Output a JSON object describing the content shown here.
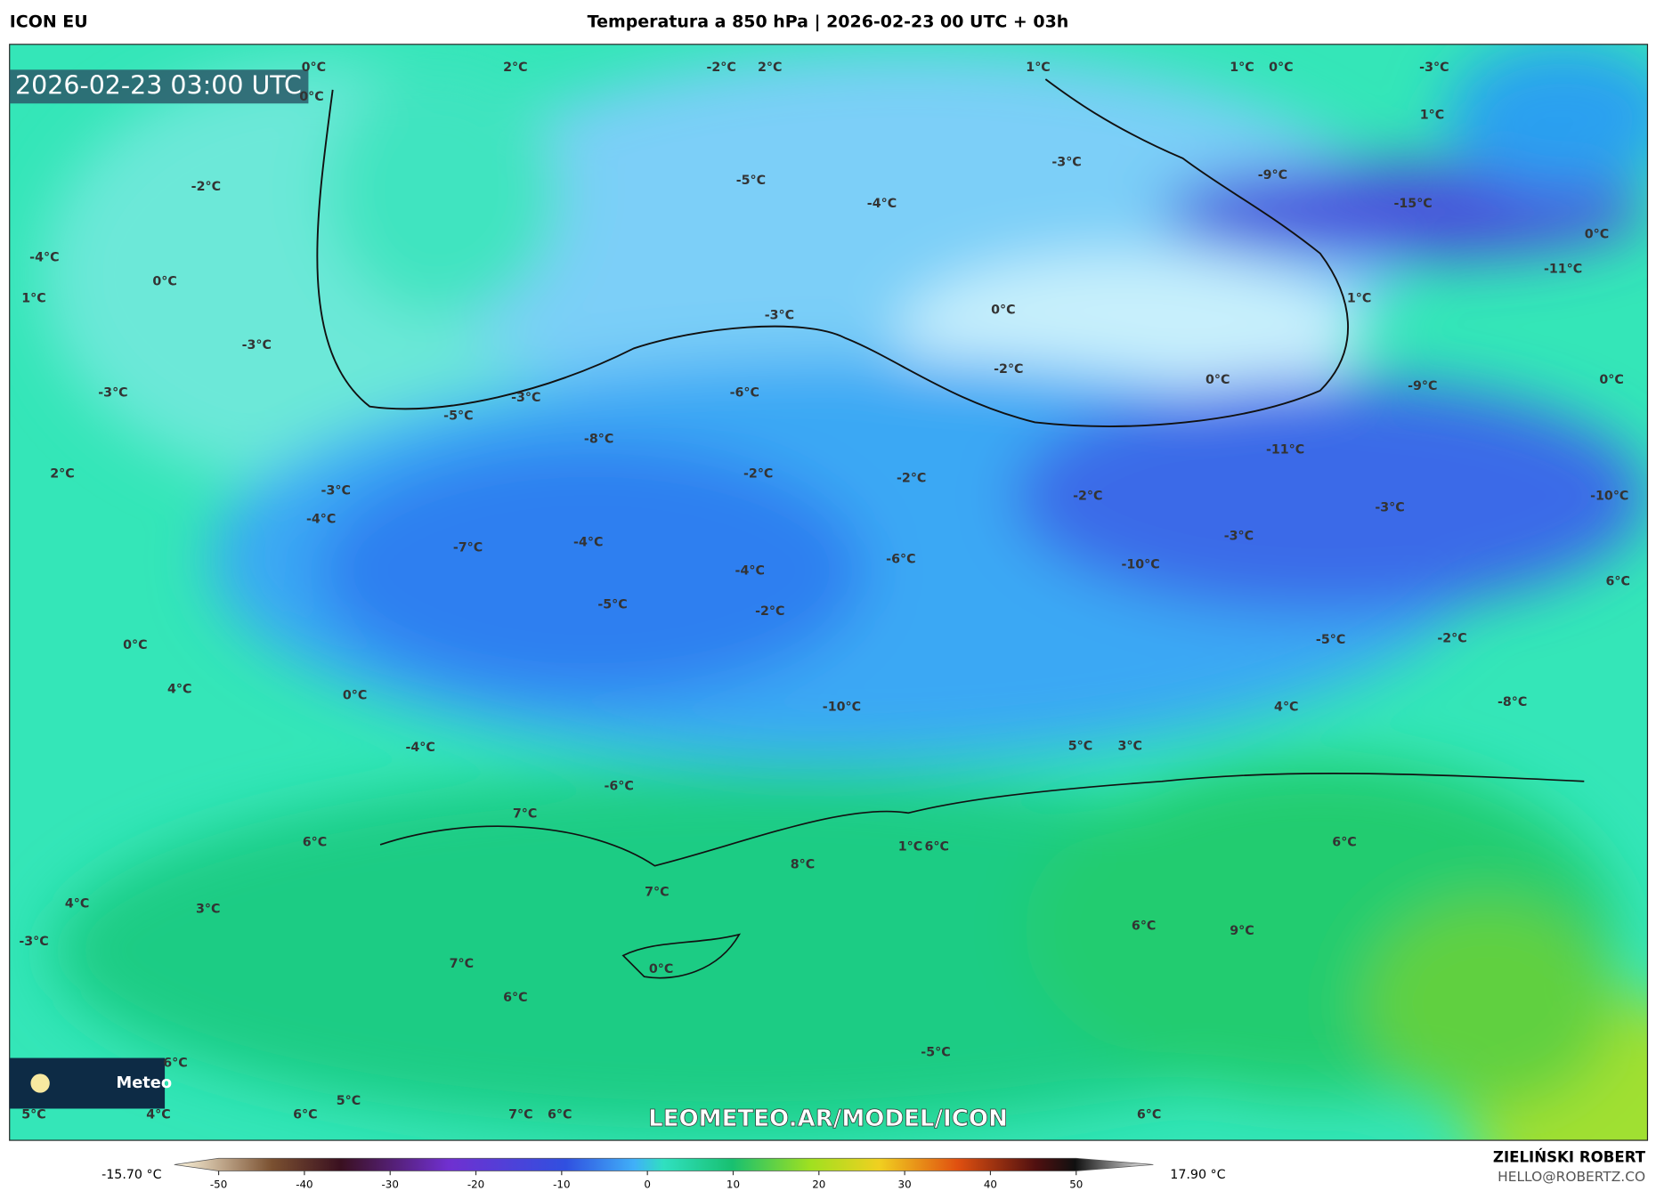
{
  "header": {
    "model": "ICON EU",
    "title": "Temperatura a 850 hPa | 2026-02-23 00 UTC + 03h"
  },
  "timestamp": "2026-02-23 03:00 UTC",
  "map": {
    "labels": [
      "0°C",
      "0°C",
      "2°C",
      "-2°C",
      "2°C",
      "1°C",
      "1°C",
      "0°C",
      "-3°C",
      "1°C",
      "-2°C",
      "-5°C",
      "-3°C",
      "-9°C",
      "-15°C",
      "-4°C",
      "0°C",
      "-4°C",
      "-11°C",
      "0°C",
      "1°C",
      "1°C",
      "0°C",
      "-3°C",
      "-3°C",
      "-2°C",
      "0°C",
      "-9°C",
      "0°C",
      "-3°C",
      "-6°C",
      "-3°C",
      "-5°C",
      "-8°C",
      "-11°C",
      "2°C",
      "-2°C",
      "-2°C",
      "-3°C",
      "-2°C",
      "-10°C",
      "-3°C",
      "-4°C",
      "-3°C",
      "-4°C",
      "-7°C",
      "-6°C",
      "-10°C",
      "-4°C",
      "6°C",
      "-5°C",
      "-2°C",
      "-5°C",
      "-2°C",
      "0°C",
      "4°C",
      "0°C",
      "-8°C",
      "-10°C",
      "4°C",
      "-4°C",
      "5°C",
      "3°C",
      "-6°C",
      "7°C",
      "6°C",
      "6°C",
      "1°C",
      "6°C",
      "8°C",
      "7°C",
      "4°C",
      "3°C",
      "6°C",
      "9°C",
      "-3°C",
      "7°C",
      "0°C",
      "6°C",
      "-5°C",
      "6°C",
      "5°C",
      "5°C",
      "4°C",
      "6°C",
      "7°C",
      "6°C",
      "6°C"
    ]
  },
  "watermark": "LEOMETEO.AR/MODEL/ICON",
  "logo": "Meteo",
  "legend": {
    "min": "-15.70 °C",
    "max": "17.90 °C",
    "ticks": [
      -50,
      -40,
      -30,
      -20,
      -10,
      0,
      10,
      20,
      30,
      40,
      50
    ]
  },
  "credits": {
    "author": "ZIELIŃSKI ROBERT",
    "email": "HELLO@ROBERTZ.CO"
  }
}
